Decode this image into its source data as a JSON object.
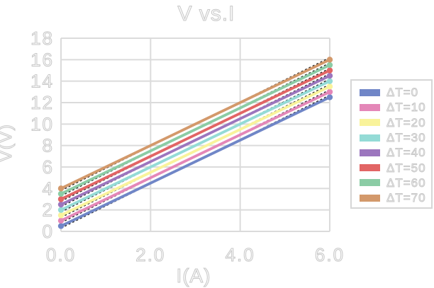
{
  "chart_data": {
    "type": "line",
    "title": "V vs.I",
    "xlabel": "I(A)",
    "ylabel": "V(V)",
    "xlim": [
      0,
      6
    ],
    "ylim": [
      0,
      18
    ],
    "xticks": {
      "values": [
        0,
        2,
        4,
        6
      ],
      "labels": [
        "0.0",
        "2.0",
        "4.0",
        "6.0"
      ]
    },
    "yticks": {
      "values": [
        0,
        2,
        4,
        6,
        8,
        10,
        12,
        14,
        16,
        18
      ],
      "labels": [
        "0",
        "2",
        "4",
        "6",
        "8",
        "10",
        "12",
        "14",
        "16",
        "18"
      ]
    },
    "grid": "both",
    "legend_position": "right",
    "series": [
      {
        "label": "ΔT=0",
        "color": "#7086c7",
        "x": [
          0,
          6
        ],
        "y": [
          0.5,
          12.5
        ]
      },
      {
        "label": "ΔT=10",
        "color": "#e487b8",
        "x": [
          0,
          6
        ],
        "y": [
          1.0,
          13.0
        ]
      },
      {
        "label": "ΔT=20",
        "color": "#f9f39b",
        "x": [
          0,
          6
        ],
        "y": [
          1.5,
          13.5
        ]
      },
      {
        "label": "ΔT=30",
        "color": "#94dbd6",
        "x": [
          0,
          6
        ],
        "y": [
          2.0,
          14.0
        ]
      },
      {
        "label": "ΔT=40",
        "color": "#9c76be",
        "x": [
          0,
          6
        ],
        "y": [
          2.5,
          14.5
        ]
      },
      {
        "label": "ΔT=50",
        "color": "#e26565",
        "x": [
          0,
          6
        ],
        "y": [
          3.0,
          15.0
        ]
      },
      {
        "label": "ΔT=60",
        "color": "#8bcca5",
        "x": [
          0,
          6
        ],
        "y": [
          3.5,
          15.5
        ]
      },
      {
        "label": "ΔT=70",
        "color": "#d3996b",
        "x": [
          0,
          6
        ],
        "y": [
          4.0,
          16.0
        ]
      }
    ],
    "style": {
      "grid_color": "#dbdbdb",
      "text_fill": "#fbfbfb",
      "text_outline": "#c7c7c7",
      "trendline": "black dashed linear fit under each series",
      "markers": "filled circles at series endpoints"
    }
  }
}
